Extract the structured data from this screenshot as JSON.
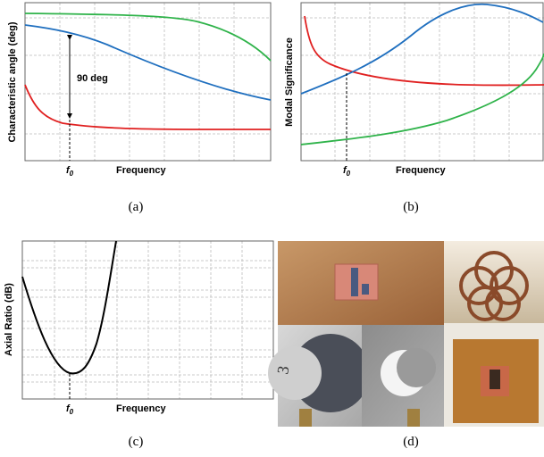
{
  "panels": [
    {
      "y_label": "Characteristic angle (deg)",
      "x_label": "Frequency",
      "marker": "f",
      "marker_sub": "0",
      "annotation": "90 deg",
      "caption": "(a)"
    },
    {
      "y_label": "Modal Significance",
      "x_label": "Frequency",
      "marker": "f",
      "marker_sub": "0",
      "caption": "(b)"
    },
    {
      "y_label": "Axial Ratio (dB)",
      "x_label": "Frequency",
      "marker": "f",
      "marker_sub": "0",
      "caption": "(c)"
    },
    {
      "caption": "(d)",
      "photo_label": "3"
    }
  ]
}
